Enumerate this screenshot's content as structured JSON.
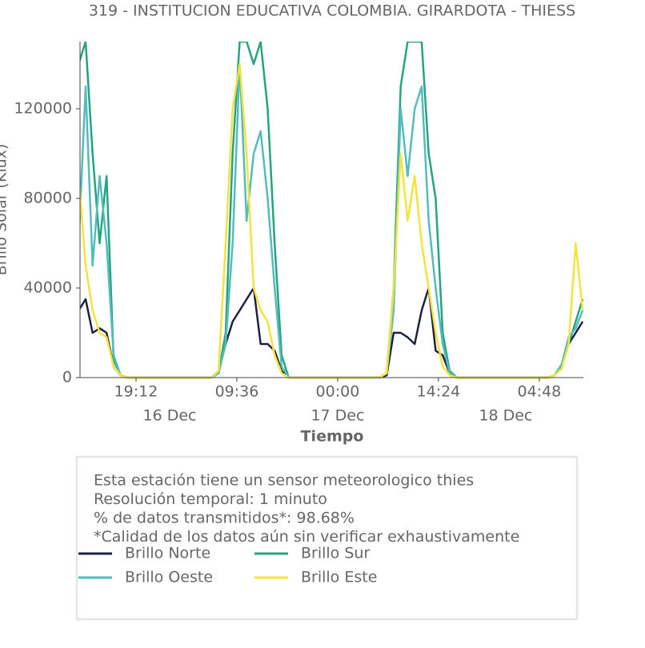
{
  "chart_data": {
    "type": "line",
    "title": "319 - INSTITUCION EDUCATIVA COLOMBIA. GIRARDOTA - THIESS",
    "x_label": "Tiempo",
    "y_label": "Brillo Solar (Klux)",
    "x": [
      "15 Dec 11:00",
      "15 Dec 12:00",
      "15 Dec 13:00",
      "15 Dec 14:00",
      "15 Dec 15:00",
      "15 Dec 16:00",
      "15 Dec 17:00",
      "15 Dec 18:00",
      "15 Dec 19:00",
      "15 Dec 20:00",
      "15 Dec 21:00",
      "15 Dec 22:00",
      "15 Dec 23:00",
      "16 Dec 00:00",
      "16 Dec 01:00",
      "16 Dec 02:00",
      "16 Dec 03:00",
      "16 Dec 04:00",
      "16 Dec 05:00",
      "16 Dec 06:00",
      "16 Dec 07:00",
      "16 Dec 08:00",
      "16 Dec 09:00",
      "16 Dec 10:00",
      "16 Dec 11:00",
      "16 Dec 12:00",
      "16 Dec 13:00",
      "16 Dec 14:00",
      "16 Dec 15:00",
      "16 Dec 16:00",
      "16 Dec 17:00",
      "16 Dec 18:00",
      "16 Dec 19:00",
      "16 Dec 20:00",
      "16 Dec 21:00",
      "16 Dec 22:00",
      "16 Dec 23:00",
      "17 Dec 00:00",
      "17 Dec 01:00",
      "17 Dec 02:00",
      "17 Dec 03:00",
      "17 Dec 04:00",
      "17 Dec 05:00",
      "17 Dec 06:00",
      "17 Dec 07:00",
      "17 Dec 08:00",
      "17 Dec 09:00",
      "17 Dec 10:00",
      "17 Dec 11:00",
      "17 Dec 12:00",
      "17 Dec 13:00",
      "17 Dec 14:00",
      "17 Dec 15:00",
      "17 Dec 16:00",
      "17 Dec 17:00",
      "17 Dec 18:00",
      "17 Dec 19:00",
      "17 Dec 20:00",
      "17 Dec 21:00",
      "17 Dec 22:00",
      "17 Dec 23:00",
      "18 Dec 00:00",
      "18 Dec 01:00",
      "18 Dec 02:00",
      "18 Dec 03:00",
      "18 Dec 04:00",
      "18 Dec 05:00",
      "18 Dec 06:00",
      "18 Dec 07:00",
      "18 Dec 08:00",
      "18 Dec 09:00",
      "18 Dec 10:00",
      "18 Dec 11:00"
    ],
    "series": [
      {
        "name": "Brillo Norte",
        "color": "#1f2143",
        "values": [
          30000,
          35000,
          20000,
          22000,
          20000,
          5000,
          1000,
          0,
          0,
          0,
          0,
          0,
          0,
          0,
          0,
          0,
          0,
          0,
          0,
          0,
          3000,
          15000,
          25000,
          30000,
          35000,
          40000,
          15000,
          15000,
          12000,
          3000,
          0,
          0,
          0,
          0,
          0,
          0,
          0,
          0,
          0,
          0,
          0,
          0,
          0,
          0,
          1000,
          20000,
          20000,
          18000,
          15000,
          30000,
          40000,
          12000,
          10000,
          2000,
          0,
          0,
          0,
          0,
          0,
          0,
          0,
          0,
          0,
          0,
          0,
          0,
          0,
          0,
          1000,
          5000,
          15000,
          20000,
          25000
        ]
      },
      {
        "name": "Brillo Sur",
        "color": "#26a47f",
        "values": [
          140000,
          150000,
          100000,
          60000,
          90000,
          8000,
          1000,
          0,
          0,
          0,
          0,
          0,
          0,
          0,
          0,
          0,
          0,
          0,
          0,
          0,
          2000,
          20000,
          100000,
          150000,
          150000,
          140000,
          150000,
          120000,
          60000,
          10000,
          0,
          0,
          0,
          0,
          0,
          0,
          0,
          0,
          0,
          0,
          0,
          0,
          0,
          0,
          2000,
          40000,
          130000,
          150000,
          150000,
          150000,
          100000,
          80000,
          20000,
          3000,
          0,
          0,
          0,
          0,
          0,
          0,
          0,
          0,
          0,
          0,
          0,
          0,
          0,
          0,
          1000,
          5000,
          15000,
          25000,
          35000
        ]
      },
      {
        "name": "Brillo Oeste",
        "color": "#52bcbf",
        "values": [
          60000,
          130000,
          50000,
          90000,
          60000,
          10000,
          1000,
          0,
          0,
          0,
          0,
          0,
          0,
          0,
          0,
          0,
          0,
          0,
          0,
          0,
          2000,
          15000,
          60000,
          140000,
          70000,
          100000,
          110000,
          80000,
          40000,
          5000,
          0,
          0,
          0,
          0,
          0,
          0,
          0,
          0,
          0,
          0,
          0,
          0,
          0,
          0,
          2000,
          30000,
          120000,
          90000,
          120000,
          130000,
          70000,
          40000,
          15000,
          2000,
          0,
          0,
          0,
          0,
          0,
          0,
          0,
          0,
          0,
          0,
          0,
          0,
          0,
          0,
          1000,
          6000,
          18000,
          22000,
          30000
        ]
      },
      {
        "name": "Brillo Este",
        "color": "#f3e33d",
        "values": [
          90000,
          50000,
          30000,
          20000,
          18000,
          5000,
          1000,
          0,
          0,
          0,
          0,
          0,
          0,
          0,
          0,
          0,
          0,
          0,
          0,
          0,
          3000,
          60000,
          120000,
          140000,
          100000,
          40000,
          30000,
          25000,
          10000,
          2000,
          0,
          0,
          0,
          0,
          0,
          0,
          0,
          0,
          0,
          0,
          0,
          0,
          0,
          0,
          2000,
          40000,
          100000,
          70000,
          90000,
          60000,
          40000,
          20000,
          5000,
          1000,
          0,
          0,
          0,
          0,
          0,
          0,
          0,
          0,
          0,
          0,
          0,
          0,
          0,
          0,
          1000,
          4000,
          15000,
          60000,
          30000
        ]
      }
    ],
    "xlim": [
      "15 Dec 11:12",
      "18 Dec 11:06"
    ],
    "xticks": [
      {
        "value": "15 Dec 19:12",
        "label": "19:12"
      },
      {
        "value": "16 Dec 09:36",
        "label": "09:36"
      },
      {
        "value": "17 Dec 00:00",
        "label": "00:00"
      },
      {
        "value": "17 Dec 14:24",
        "label": "14:24"
      },
      {
        "value": "18 Dec 04:48",
        "label": "04:48"
      }
    ],
    "xdates": [
      {
        "value": "16 Dec 00:00",
        "label": "16 Dec"
      },
      {
        "value": "17 Dec 00:00",
        "label": "17 Dec"
      },
      {
        "value": "18 Dec 00:00",
        "label": "18 Dec"
      }
    ],
    "ylim": [
      0,
      150000
    ],
    "yticks": [
      0,
      40000,
      80000,
      120000
    ],
    "notes": [
      "Esta estación tiene un sensor meteorologico thies",
      "Resolución temporal: 1 minuto",
      "% de datos transmitidos*: 98.68%",
      "*Calidad de los datos aún sin verificar exhaustivamente"
    ]
  }
}
